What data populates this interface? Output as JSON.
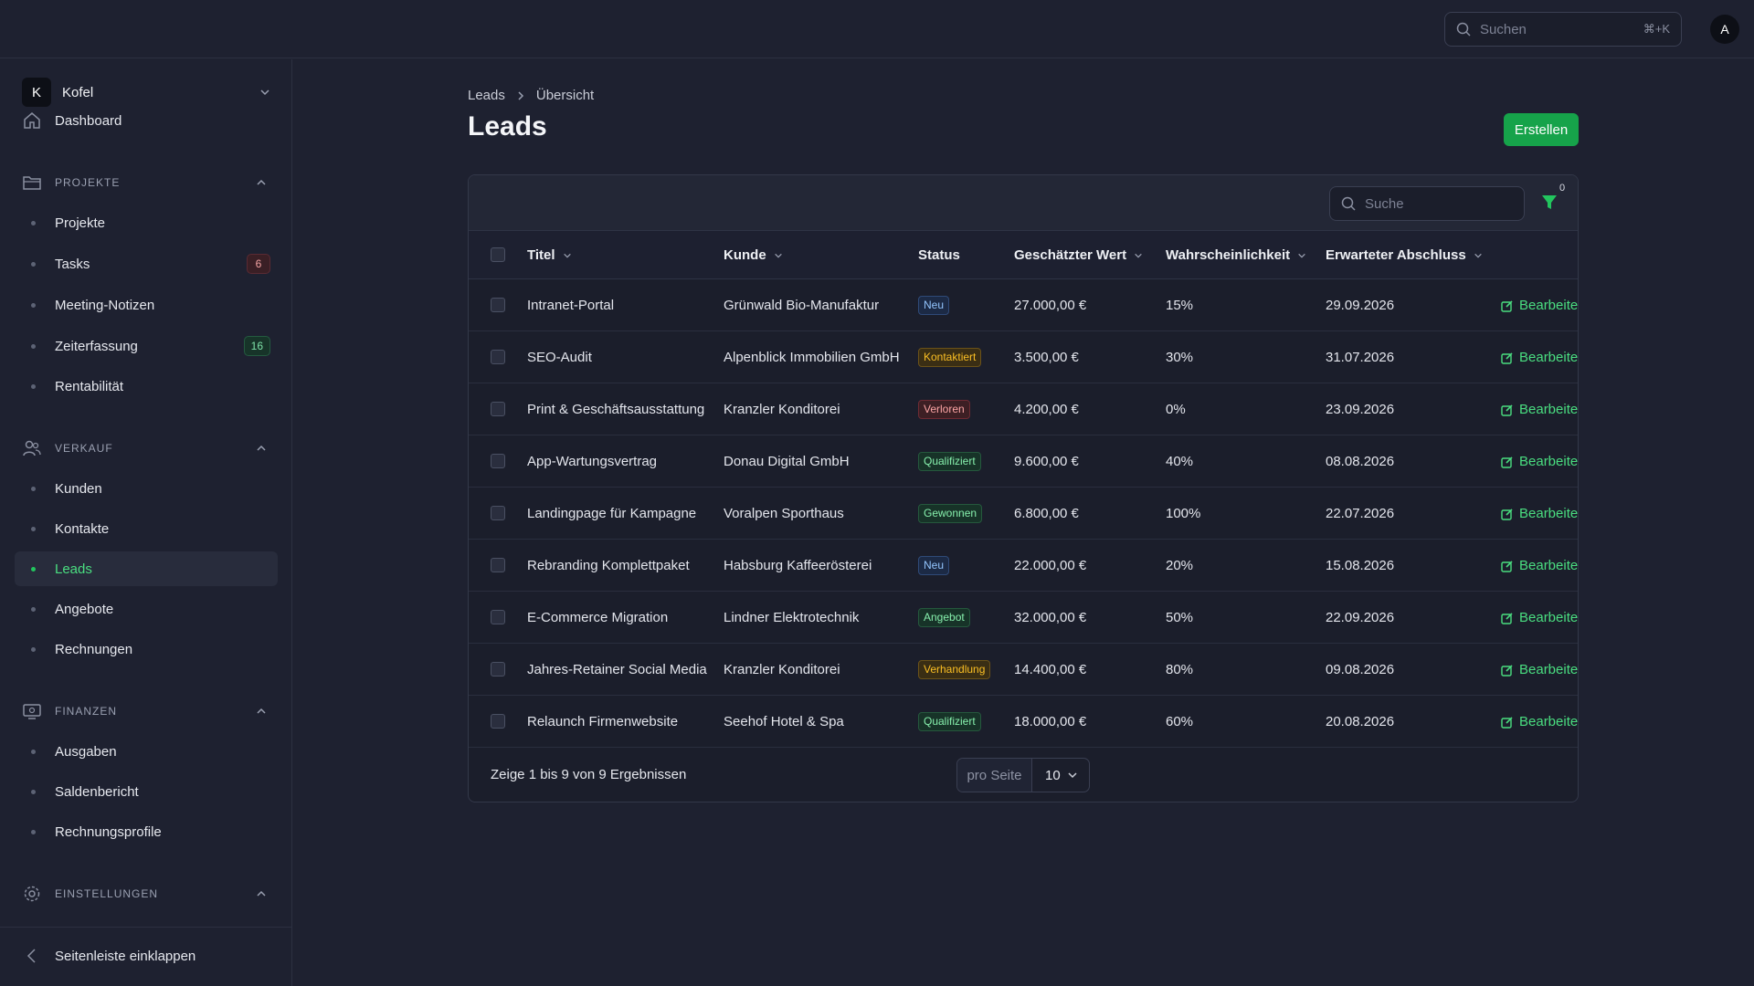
{
  "topbar": {
    "search_placeholder": "Suchen",
    "search_shortcut": "⌘+K",
    "avatar_initial": "A"
  },
  "sidebar": {
    "workspace": {
      "initial": "K",
      "name": "Kofel"
    },
    "dashboard": "Dashboard",
    "sections": [
      {
        "label": "PROJEKTE",
        "icon": "folder-icon",
        "items": [
          {
            "label": "Projekte"
          },
          {
            "label": "Tasks",
            "badge": "6",
            "badge_color": "red"
          },
          {
            "label": "Meeting-Notizen"
          },
          {
            "label": "Zeiterfassung",
            "badge": "16",
            "badge_color": "green"
          },
          {
            "label": "Rentabilität"
          }
        ]
      },
      {
        "label": "VERKAUF",
        "icon": "users-icon",
        "items": [
          {
            "label": "Kunden"
          },
          {
            "label": "Kontakte"
          },
          {
            "label": "Leads",
            "active": true
          },
          {
            "label": "Angebote"
          },
          {
            "label": "Rechnungen"
          }
        ]
      },
      {
        "label": "FINANZEN",
        "icon": "monitor-icon",
        "items": [
          {
            "label": "Ausgaben"
          },
          {
            "label": "Saldenbericht"
          },
          {
            "label": "Rechnungsprofile"
          }
        ]
      },
      {
        "label": "EINSTELLUNGEN",
        "icon": "gear-icon",
        "items": []
      }
    ],
    "collapse_label": "Seitenleiste einklappen"
  },
  "main": {
    "breadcrumb": [
      "Leads",
      "Übersicht"
    ],
    "title": "Leads",
    "create_label": "Erstellen",
    "table": {
      "search_placeholder": "Suche",
      "filter_count": "0",
      "columns": [
        "Titel",
        "Kunde",
        "Status",
        "Geschätzter Wert",
        "Wahrscheinlichkeit",
        "Erwarteter Abschluss"
      ],
      "edit_label": "Bearbeiten",
      "rows": [
        {
          "title": "Intranet-Portal",
          "customer": "Grünwald Bio-Manufaktur",
          "status": "Neu",
          "value": "27.000,00 €",
          "probability": "15%",
          "close": "29.09.2026"
        },
        {
          "title": "SEO-Audit",
          "customer": "Alpenblick Immobilien GmbH",
          "status": "Kontaktiert",
          "value": "3.500,00 €",
          "probability": "30%",
          "close": "31.07.2026"
        },
        {
          "title": "Print & Geschäftsausstattung",
          "customer": "Kranzler Konditorei",
          "status": "Verloren",
          "value": "4.200,00 €",
          "probability": "0%",
          "close": "23.09.2026"
        },
        {
          "title": "App-Wartungsvertrag",
          "customer": "Donau Digital GmbH",
          "status": "Qualifiziert",
          "value": "9.600,00 €",
          "probability": "40%",
          "close": "08.08.2026"
        },
        {
          "title": "Landingpage für Kampagne",
          "customer": "Voralpen Sporthaus",
          "status": "Gewonnen",
          "value": "6.800,00 €",
          "probability": "100%",
          "close": "22.07.2026"
        },
        {
          "title": "Rebranding Komplettpaket",
          "customer": "Habsburg Kaffeerösterei",
          "status": "Neu",
          "value": "22.000,00 €",
          "probability": "20%",
          "close": "15.08.2026"
        },
        {
          "title": "E-Commerce Migration",
          "customer": "Lindner Elektrotechnik",
          "status": "Angebot",
          "value": "32.000,00 €",
          "probability": "50%",
          "close": "22.09.2026"
        },
        {
          "title": "Jahres-Retainer Social Media",
          "customer": "Kranzler Konditorei",
          "status": "Verhandlung",
          "value": "14.400,00 €",
          "probability": "80%",
          "close": "09.08.2026"
        },
        {
          "title": "Relaunch Firmenwebsite",
          "customer": "Seehof Hotel & Spa",
          "status": "Qualifiziert",
          "value": "18.000,00 €",
          "probability": "60%",
          "close": "20.08.2026"
        }
      ],
      "footer_text": "Zeige 1 bis 9 von 9 Ergebnissen",
      "per_page_label": "pro Seite",
      "per_page_value": "10"
    }
  },
  "status_colors": {
    "Neu": {
      "fg": "#93c5fd",
      "bg": "#1c2a45",
      "border": "#2f4a78"
    },
    "Kontaktiert": {
      "fg": "#fbbf24",
      "bg": "#3a2e14",
      "border": "#6b5218"
    },
    "Verloren": {
      "fg": "#fca5a5",
      "bg": "#3d1f24",
      "border": "#6e2b34"
    },
    "Qualifiziert": {
      "fg": "#86efac",
      "bg": "#173328",
      "border": "#25583d"
    },
    "Gewonnen": {
      "fg": "#86efac",
      "bg": "#173328",
      "border": "#25583d"
    },
    "Angebot": {
      "fg": "#86efac",
      "bg": "#173328",
      "border": "#25583d"
    },
    "Verhandlung": {
      "fg": "#fbbf24",
      "bg": "#3a2e14",
      "border": "#6b5218"
    }
  }
}
